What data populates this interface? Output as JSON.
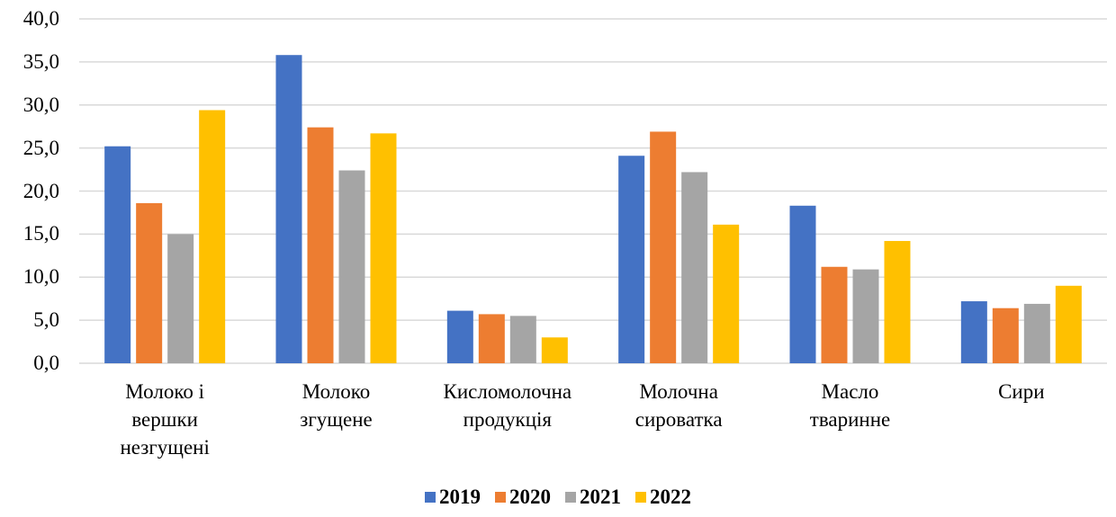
{
  "chart_data": {
    "type": "bar",
    "categories": [
      "Молоко і\nвершки\nнезгущені",
      "Молоко\nзгущене",
      "Кисломолочна\nпродукція",
      "Молочна\nсироватка",
      "Масло\nтваринне",
      "Сири"
    ],
    "series": [
      {
        "name": "2019",
        "color": "#4472c4",
        "values": [
          25.2,
          35.8,
          6.1,
          24.1,
          18.3,
          7.2
        ]
      },
      {
        "name": "2020",
        "color": "#ed7d31",
        "values": [
          18.6,
          27.4,
          5.7,
          26.9,
          11.2,
          6.4
        ]
      },
      {
        "name": "2021",
        "color": "#a5a5a5",
        "values": [
          15.0,
          22.4,
          5.5,
          22.2,
          10.9,
          6.9
        ]
      },
      {
        "name": "2022",
        "color": "#ffc000",
        "values": [
          29.4,
          26.7,
          3.0,
          16.1,
          14.2,
          9.0
        ]
      }
    ],
    "ylim": [
      0,
      40
    ],
    "yticks": [
      {
        "value": 0,
        "label": "0,0"
      },
      {
        "value": 5,
        "label": "5,0"
      },
      {
        "value": 10,
        "label": "10,0"
      },
      {
        "value": 15,
        "label": "15,0"
      },
      {
        "value": 20,
        "label": "20,0"
      },
      {
        "value": 25,
        "label": "25,0"
      },
      {
        "value": 30,
        "label": "30,0"
      },
      {
        "value": 35,
        "label": "35,0"
      },
      {
        "value": 40,
        "label": "40,0"
      }
    ],
    "grid": true,
    "legend": "bottom"
  }
}
